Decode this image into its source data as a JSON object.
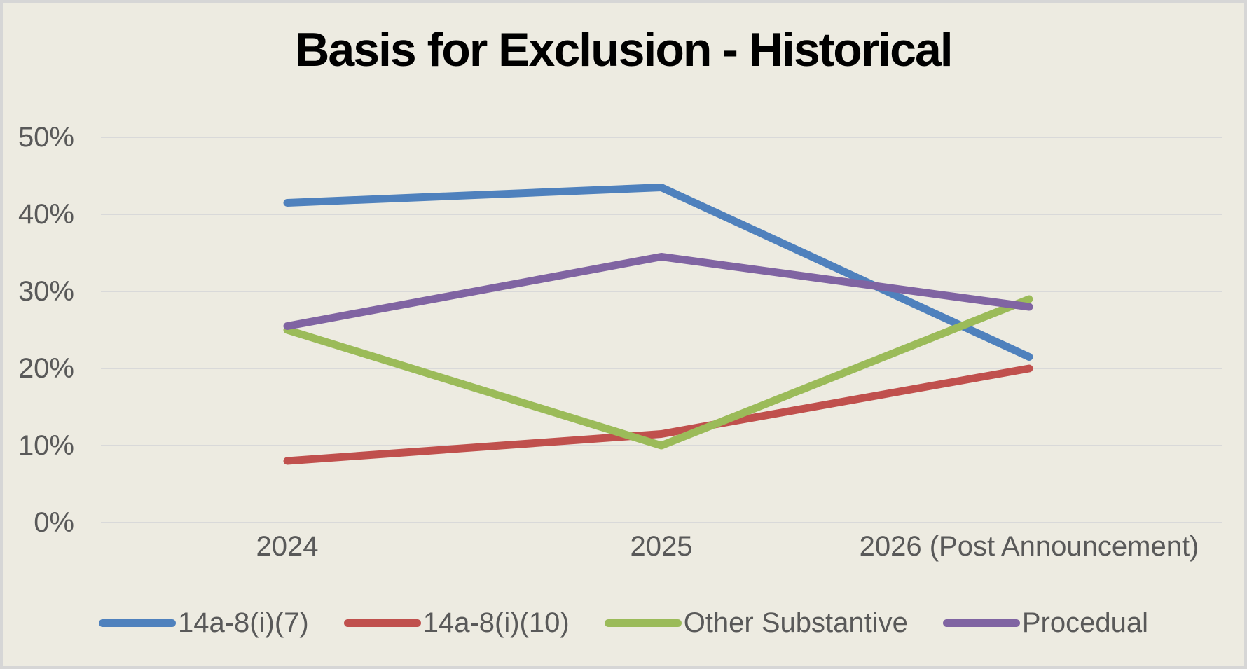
{
  "chart": {
    "title": "Basis for Exclusion - Historical"
  },
  "chart_data": {
    "type": "line",
    "title": "Basis for Exclusion - Historical",
    "categories": [
      "2024",
      "2025",
      "2026 (Post Announcement)"
    ],
    "series": [
      {
        "name": "14a-8(i)(7)",
        "color": "#4F81BD",
        "values": [
          41.5,
          43.5,
          21.5
        ]
      },
      {
        "name": "14a-8(i)(10)",
        "color": "#C0504D",
        "values": [
          8,
          11.5,
          20
        ]
      },
      {
        "name": "Other Substantive",
        "color": "#9BBB59",
        "values": [
          25,
          10,
          29
        ]
      },
      {
        "name": "Procedual",
        "color": "#8064A2",
        "values": [
          25.5,
          34.5,
          28
        ]
      }
    ],
    "unit": "percent",
    "ylim": [
      0,
      50
    ],
    "ytick_step": 10,
    "y_tick_labels": [
      "0%",
      "10%",
      "20%",
      "30%",
      "40%",
      "50%"
    ],
    "grid": "horizontal-only",
    "legend_position": "bottom",
    "colors": {
      "background": "#EDEBE1",
      "frame_border": "#D6D6D6",
      "gridline": "#D9D9D9",
      "axis_text": "#595959",
      "title_text": "#000000"
    }
  }
}
